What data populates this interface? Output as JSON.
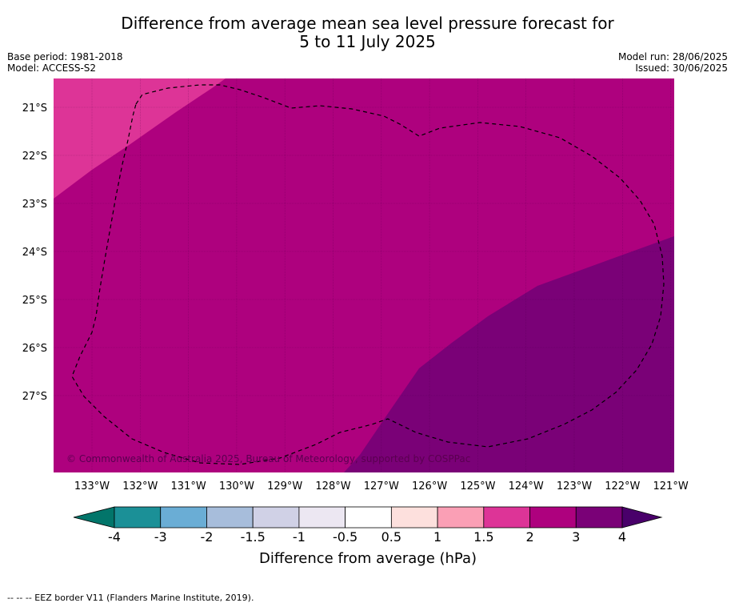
{
  "title": {
    "line1": "Difference from average mean sea level pressure forecast for",
    "line2": "5 to 11 July 2025"
  },
  "meta_left": {
    "base_period": "Base period: 1981-2018",
    "model": "Model: ACCESS-S2"
  },
  "meta_right": {
    "model_run": "Model run: 28/06/2025",
    "issued": "Issued: 30/06/2025"
  },
  "map": {
    "lat_labels": [
      "21°S",
      "22°S",
      "23°S",
      "24°S",
      "25°S",
      "26°S",
      "27°S"
    ],
    "lon_labels": [
      "133°W",
      "132°W",
      "131°W",
      "130°W",
      "129°W",
      "128°W",
      "127°W",
      "126°W",
      "125°W",
      "124°W",
      "123°W",
      "122°W",
      "121°W"
    ],
    "copyright": "© Commonwealth of Australia 2025, Bureau of Meteorology, supported by COSPPac",
    "fill_colors": {
      "range_1_5_to_2": "#dd3497",
      "range_2_to_3": "#ae017e",
      "range_3_to_4": "#7a0177"
    }
  },
  "colorbar": {
    "label": "Difference from average (hPa)",
    "ticks": [
      "-4",
      "-3",
      "-2",
      "-1.5",
      "-1",
      "-0.5",
      "0.5",
      "1",
      "1.5",
      "2",
      "3",
      "4"
    ],
    "colors": [
      "#1b9097",
      "#6aadd5",
      "#a7bddb",
      "#d0d1e6",
      "#ece7f2",
      "#ffffff",
      "#fde0dd",
      "#fa9fb5",
      "#dd3497",
      "#ae017e",
      "#7a0177"
    ],
    "under_color": "#02756a",
    "over_color": "#49006a"
  },
  "footnote": "--  --  -- EEZ border V11 (Flanders Marine Institute, 2019)."
}
